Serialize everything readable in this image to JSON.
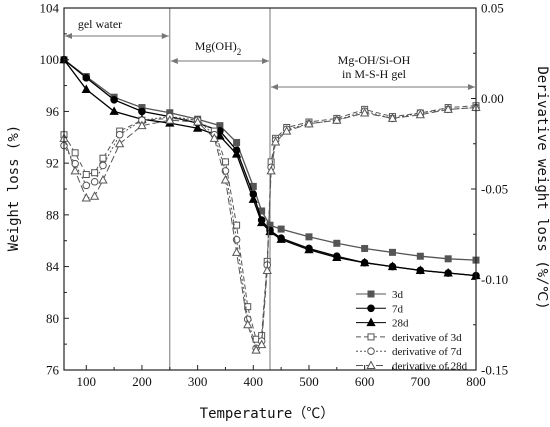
{
  "chart_data": {
    "type": "line",
    "xlabel": "Temperature（℃）",
    "ylabel": "Weight loss (%)",
    "y2label": "Derivative weight loss (%/℃)",
    "xlim": [
      60,
      800
    ],
    "ylim": [
      76,
      104
    ],
    "y2lim": [
      -0.15,
      0.05
    ],
    "xticks": [
      "100",
      "200",
      "300",
      "400",
      "500",
      "600",
      "700",
      "800"
    ],
    "yticks": [
      "76",
      "80",
      "84",
      "88",
      "92",
      "96",
      "100",
      "104"
    ],
    "y2ticks": [
      "-0.15",
      "-0.10",
      "-0.05",
      "0.00",
      "0.05"
    ],
    "regions": [
      {
        "label": "gel water",
        "from": 60,
        "to": 250
      },
      {
        "label": "Mg(OH)",
        "sub": "2",
        "from": 250,
        "to": 430
      },
      {
        "label": "Mg-OH/Si-OH",
        "label2": "in M-S-H gel",
        "from": 430,
        "to": 800
      }
    ],
    "dividers": [
      250,
      430
    ],
    "series": [
      {
        "name": "3d",
        "axis": "left",
        "marker": "square-filled",
        "color": "#555555",
        "x": [
          60,
          100,
          150,
          200,
          250,
          300,
          340,
          370,
          400,
          415,
          430,
          450,
          500,
          550,
          600,
          650,
          700,
          750,
          800
        ],
        "y": [
          100.0,
          98.7,
          97.1,
          96.3,
          95.9,
          95.4,
          94.9,
          93.6,
          90.2,
          88.3,
          87.2,
          86.9,
          86.3,
          85.8,
          85.4,
          85.1,
          84.8,
          84.6,
          84.5
        ]
      },
      {
        "name": "7d",
        "axis": "left",
        "marker": "circle-filled",
        "color": "#000000",
        "x": [
          60,
          100,
          150,
          200,
          250,
          300,
          340,
          370,
          400,
          415,
          430,
          450,
          500,
          550,
          600,
          650,
          700,
          750,
          800
        ],
        "y": [
          100.0,
          98.6,
          96.9,
          96.0,
          95.6,
          95.1,
          94.5,
          93.0,
          89.6,
          87.6,
          86.8,
          86.2,
          85.4,
          84.8,
          84.3,
          84.0,
          83.7,
          83.5,
          83.3
        ]
      },
      {
        "name": "28d",
        "axis": "left",
        "marker": "triangle-filled",
        "color": "#000000",
        "x": [
          60,
          100,
          150,
          200,
          250,
          300,
          340,
          370,
          400,
          415,
          430,
          450,
          500,
          550,
          600,
          650,
          700,
          750,
          800
        ],
        "y": [
          100.0,
          97.7,
          96.0,
          95.4,
          95.1,
          94.7,
          94.1,
          92.7,
          89.2,
          87.4,
          86.7,
          86.1,
          85.3,
          84.7,
          84.3,
          84.0,
          83.7,
          83.5,
          83.3
        ]
      },
      {
        "name": "derivative of 3d",
        "axis": "right",
        "marker": "square-open",
        "color": "#555555",
        "x": [
          60,
          80,
          100,
          115,
          130,
          160,
          200,
          250,
          300,
          330,
          350,
          370,
          390,
          405,
          415,
          425,
          432,
          440,
          460,
          500,
          550,
          600,
          650,
          700,
          750,
          800
        ],
        "y": [
          -0.02,
          -0.03,
          -0.042,
          -0.041,
          -0.033,
          -0.018,
          -0.012,
          -0.011,
          -0.012,
          -0.018,
          -0.035,
          -0.07,
          -0.115,
          -0.133,
          -0.131,
          -0.09,
          -0.035,
          -0.022,
          -0.016,
          -0.013,
          -0.011,
          -0.006,
          -0.01,
          -0.008,
          -0.005,
          -0.004
        ]
      },
      {
        "name": "derivative of 7d",
        "axis": "right",
        "marker": "circle-open",
        "color": "#555555",
        "x": [
          60,
          80,
          100,
          115,
          130,
          160,
          200,
          250,
          300,
          330,
          350,
          370,
          390,
          405,
          415,
          425,
          432,
          440,
          460,
          500,
          550,
          600,
          650,
          700,
          750,
          800
        ],
        "y": [
          -0.026,
          -0.036,
          -0.048,
          -0.046,
          -0.037,
          -0.02,
          -0.012,
          -0.01,
          -0.012,
          -0.02,
          -0.04,
          -0.078,
          -0.122,
          -0.138,
          -0.134,
          -0.092,
          -0.038,
          -0.023,
          -0.017,
          -0.014,
          -0.012,
          -0.007,
          -0.011,
          -0.008,
          -0.006,
          -0.005
        ]
      },
      {
        "name": "derivative of 28d",
        "axis": "right",
        "marker": "triangle-open",
        "color": "#555555",
        "x": [
          60,
          80,
          100,
          115,
          130,
          160,
          200,
          250,
          300,
          330,
          350,
          370,
          390,
          405,
          415,
          425,
          432,
          440,
          460,
          500,
          550,
          600,
          650,
          700,
          750,
          800
        ],
        "y": [
          -0.022,
          -0.04,
          -0.055,
          -0.054,
          -0.045,
          -0.025,
          -0.015,
          -0.012,
          -0.013,
          -0.022,
          -0.045,
          -0.085,
          -0.125,
          -0.139,
          -0.136,
          -0.095,
          -0.04,
          -0.024,
          -0.018,
          -0.014,
          -0.012,
          -0.008,
          -0.011,
          -0.009,
          -0.006,
          -0.005
        ]
      }
    ],
    "legend": {
      "placement": "bottom-right"
    }
  }
}
